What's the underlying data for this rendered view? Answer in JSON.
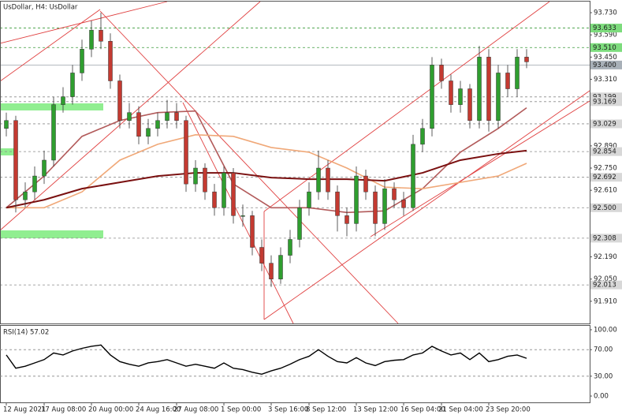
{
  "chart_data": {
    "type": "candlestick",
    "title": "UsDollar, H4:  UsDollar",
    "up_color": "#2f9e2f",
    "down_color": "#c43a31",
    "open": [
      93.0,
      93.05,
      92.55,
      92.6,
      92.7,
      92.8,
      93.15,
      93.2,
      93.35,
      93.5,
      93.62,
      93.55,
      93.3,
      93.05,
      93.1,
      92.95,
      93.0,
      93.05,
      93.1,
      93.05,
      92.65,
      92.75,
      92.6,
      92.5,
      92.72,
      92.45,
      92.45,
      92.25,
      92.15,
      92.05,
      92.2,
      92.3,
      92.5,
      92.6,
      92.75,
      92.6,
      92.45,
      92.4,
      92.7,
      92.6,
      92.4,
      92.62,
      92.55,
      92.5,
      92.9,
      93.0,
      93.4,
      93.3,
      93.15,
      93.25,
      93.05,
      93.45,
      93.05,
      93.35,
      93.25,
      93.45
    ],
    "high": [
      93.1,
      93.08,
      92.66,
      92.76,
      92.86,
      93.2,
      93.26,
      93.4,
      93.56,
      93.68,
      93.73,
      93.6,
      93.34,
      93.16,
      93.14,
      93.06,
      93.1,
      93.18,
      93.16,
      93.08,
      92.8,
      92.78,
      92.65,
      92.76,
      92.75,
      92.52,
      92.48,
      92.3,
      92.2,
      92.25,
      92.36,
      92.55,
      92.66,
      92.86,
      92.8,
      92.64,
      92.5,
      92.76,
      92.74,
      92.64,
      92.68,
      92.66,
      92.6,
      92.96,
      93.06,
      93.45,
      93.44,
      93.34,
      93.3,
      93.28,
      93.52,
      93.5,
      93.4,
      93.4,
      93.5,
      93.5
    ],
    "low": [
      92.95,
      92.47,
      92.5,
      92.55,
      92.65,
      92.76,
      93.1,
      93.15,
      93.3,
      93.45,
      93.5,
      93.25,
      93.0,
      93.0,
      92.9,
      92.9,
      92.95,
      93.0,
      93.0,
      92.6,
      92.6,
      92.55,
      92.45,
      92.45,
      92.4,
      92.38,
      92.2,
      92.1,
      92.0,
      92.02,
      92.15,
      92.25,
      92.45,
      92.55,
      92.55,
      92.35,
      92.32,
      92.35,
      92.55,
      92.32,
      92.36,
      92.5,
      92.45,
      92.48,
      92.85,
      92.95,
      93.25,
      93.1,
      93.1,
      93.0,
      93.0,
      92.98,
      93.0,
      93.2,
      93.2,
      93.38
    ],
    "close": [
      93.05,
      92.55,
      92.6,
      92.7,
      92.8,
      93.15,
      93.2,
      93.35,
      93.5,
      93.62,
      93.55,
      93.3,
      93.05,
      93.1,
      92.95,
      93.0,
      93.05,
      93.1,
      93.05,
      92.65,
      92.75,
      92.6,
      92.5,
      92.72,
      92.45,
      92.45,
      92.25,
      92.15,
      92.05,
      92.2,
      92.3,
      92.5,
      92.6,
      92.75,
      92.6,
      92.45,
      92.4,
      92.7,
      92.6,
      92.4,
      92.62,
      92.55,
      92.5,
      92.9,
      93.0,
      93.4,
      93.3,
      93.15,
      93.25,
      93.05,
      93.45,
      93.05,
      93.35,
      93.25,
      93.45,
      93.42
    ],
    "moving_averages": [
      {
        "color": "#b25a5a",
        "x": [
          0,
          4,
          8,
          12,
          16,
          20,
          24,
          28,
          32,
          36,
          40,
          44,
          48,
          52,
          55
        ],
        "values": [
          92.5,
          92.7,
          92.95,
          93.05,
          93.1,
          93.11,
          92.65,
          92.5,
          92.5,
          92.47,
          92.48,
          92.62,
          92.85,
          93.0,
          93.13
        ]
      },
      {
        "color": "#f0a878",
        "x": [
          0,
          4,
          8,
          12,
          16,
          20,
          24,
          28,
          32,
          36,
          40,
          44,
          48,
          52,
          55
        ],
        "values": [
          92.5,
          92.5,
          92.6,
          92.8,
          92.9,
          92.96,
          92.95,
          92.88,
          92.85,
          92.75,
          92.63,
          92.62,
          92.66,
          92.7,
          92.78
        ]
      },
      {
        "color": "#7a1010",
        "x": [
          0,
          4,
          8,
          12,
          16,
          20,
          24,
          28,
          32,
          36,
          40,
          44,
          48,
          52,
          55
        ],
        "values": [
          92.5,
          92.55,
          92.62,
          92.66,
          92.7,
          92.72,
          92.72,
          92.69,
          92.68,
          92.68,
          92.67,
          92.72,
          92.8,
          92.84,
          92.86
        ]
      }
    ],
    "ylim": [
      91.77,
      93.8
    ],
    "yticks": [
      {
        "value": 93.73,
        "label": "93.730"
      },
      {
        "value": 93.59,
        "label": "93.590"
      },
      {
        "value": 93.45,
        "label": "93.450"
      },
      {
        "value": 93.31,
        "label": "93.310"
      },
      {
        "value": 92.89,
        "label": "92.890"
      },
      {
        "value": 92.75,
        "label": "92.750"
      },
      {
        "value": 92.61,
        "label": "92.610"
      },
      {
        "value": 92.19,
        "label": "92.190"
      },
      {
        "value": 92.05,
        "label": "92.050"
      },
      {
        "value": 91.91,
        "label": "91.910"
      }
    ],
    "levels": [
      {
        "price": 93.633,
        "color": "#7ddc7d",
        "style": "dashed"
      },
      {
        "price": {
          "value": 93.51,
          "label": "93.510"
        },
        "color": "#7ddc7d",
        "style": "dashed"
      },
      {
        "price": {
          "value": 93.4,
          "label": "93.400"
        },
        "color": "#a8b0b8",
        "style": "solid"
      },
      {
        "price": 93.199,
        "color": "#d8d8d8",
        "style": "dashed"
      },
      {
        "price": 93.169,
        "color": "#d8d8d8",
        "style": "dashed"
      },
      {
        "price": 93.029,
        "color": "#d8d8d8",
        "style": "dashed"
      },
      {
        "price": 92.854,
        "color": "#d8d8d8",
        "style": "dashed"
      },
      {
        "price": 92.692,
        "color": "#d8d8d8",
        "style": "dashed"
      },
      {
        "price": {
          "value": 92.5,
          "label": "92.500"
        },
        "color": "#d8d8d8",
        "style": "dashed"
      },
      {
        "price": 92.308,
        "color": "#d8d8d8",
        "style": "dashed"
      },
      {
        "price": 92.013,
        "color": "#d8d8d8",
        "style": "dashed"
      }
    ],
    "xticks": [
      {
        "value": 0,
        "label": "12 Aug 2021"
      },
      {
        "value": 4,
        "label": "17 Aug 08:00"
      },
      {
        "value": 9,
        "label": "20 Aug 00:00"
      },
      {
        "value": 14,
        "label": "24 Aug 16:00"
      },
      {
        "value": 18,
        "label": "27 Aug 08:00"
      },
      {
        "value": 23,
        "label": "1 Sep 00:00"
      },
      {
        "value": 28,
        "label": "3 Sep 16:00"
      },
      {
        "value": 32,
        "label": "8 Sep 12:00"
      },
      {
        "value": 37,
        "label": "13 Sep 12:00"
      },
      {
        "value": 42,
        "label": "16 Sep 04:00"
      },
      {
        "value": 46,
        "label": "21 Sep 04:00"
      },
      {
        "value": 51,
        "label": "23 Sep 20:00"
      }
    ],
    "rsi": {
      "label": "RSI(14) 57.02",
      "color": "#000000",
      "values": [
        62,
        42,
        45,
        50,
        55,
        65,
        62,
        68,
        72,
        75,
        77,
        62,
        52,
        48,
        45,
        50,
        52,
        55,
        50,
        45,
        48,
        45,
        42,
        50,
        42,
        40,
        36,
        33,
        38,
        42,
        48,
        55,
        60,
        70,
        60,
        52,
        50,
        58,
        50,
        46,
        52,
        54,
        55,
        62,
        65,
        75,
        68,
        62,
        65,
        55,
        65,
        52,
        55,
        60,
        62,
        57
      ],
      "ylim": [
        -9.5,
        107.1
      ],
      "yticks": [
        {
          "value": 100,
          "label": "100.00"
        },
        {
          "value": 70,
          "label": "70.00"
        },
        {
          "value": 30,
          "label": "30.00"
        },
        {
          "value": 0,
          "label": "0.00"
        }
      ],
      "levels": [
        70,
        30
      ]
    }
  }
}
